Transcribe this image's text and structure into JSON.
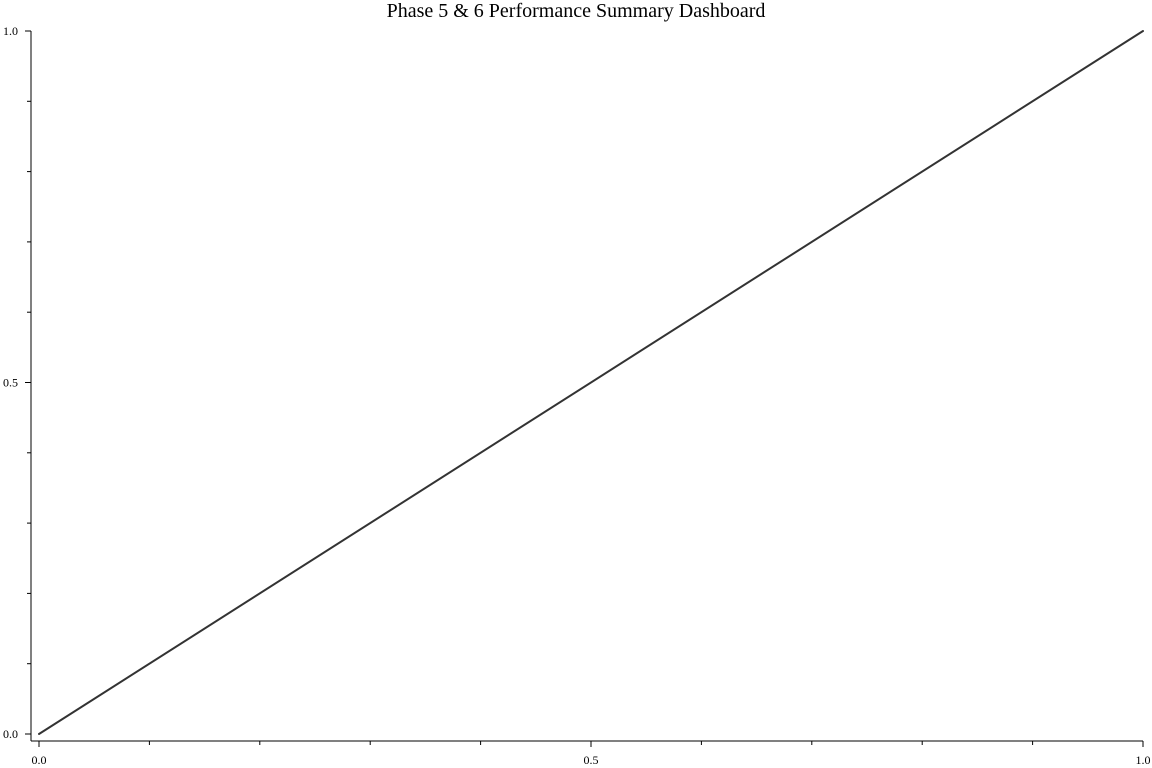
{
  "chart_data": {
    "type": "line",
    "title": "Phase 5 & 6 Performance Summary Dashboard",
    "xlabel": "",
    "ylabel": "",
    "xlim": [
      0.0,
      1.0
    ],
    "ylim": [
      0.0,
      1.0
    ],
    "x_ticks": [
      {
        "value": 0.0,
        "label": "0.0"
      },
      {
        "value": 0.5,
        "label": "0.5"
      },
      {
        "value": 1.0,
        "label": "1.0"
      }
    ],
    "x_minor_ticks": [
      0.1,
      0.2,
      0.3,
      0.4,
      0.6,
      0.7,
      0.8,
      0.9
    ],
    "y_ticks": [
      {
        "value": 0.0,
        "label": "0.0"
      },
      {
        "value": 0.5,
        "label": "0.5"
      },
      {
        "value": 1.0,
        "label": "1.0"
      }
    ],
    "y_minor_ticks": [
      0.1,
      0.2,
      0.3,
      0.4,
      0.6,
      0.7,
      0.8,
      0.9
    ],
    "grid": false,
    "series": [
      {
        "color": "#333333",
        "x": [
          0.0,
          1.0
        ],
        "y": [
          0.0,
          1.0
        ]
      }
    ]
  }
}
